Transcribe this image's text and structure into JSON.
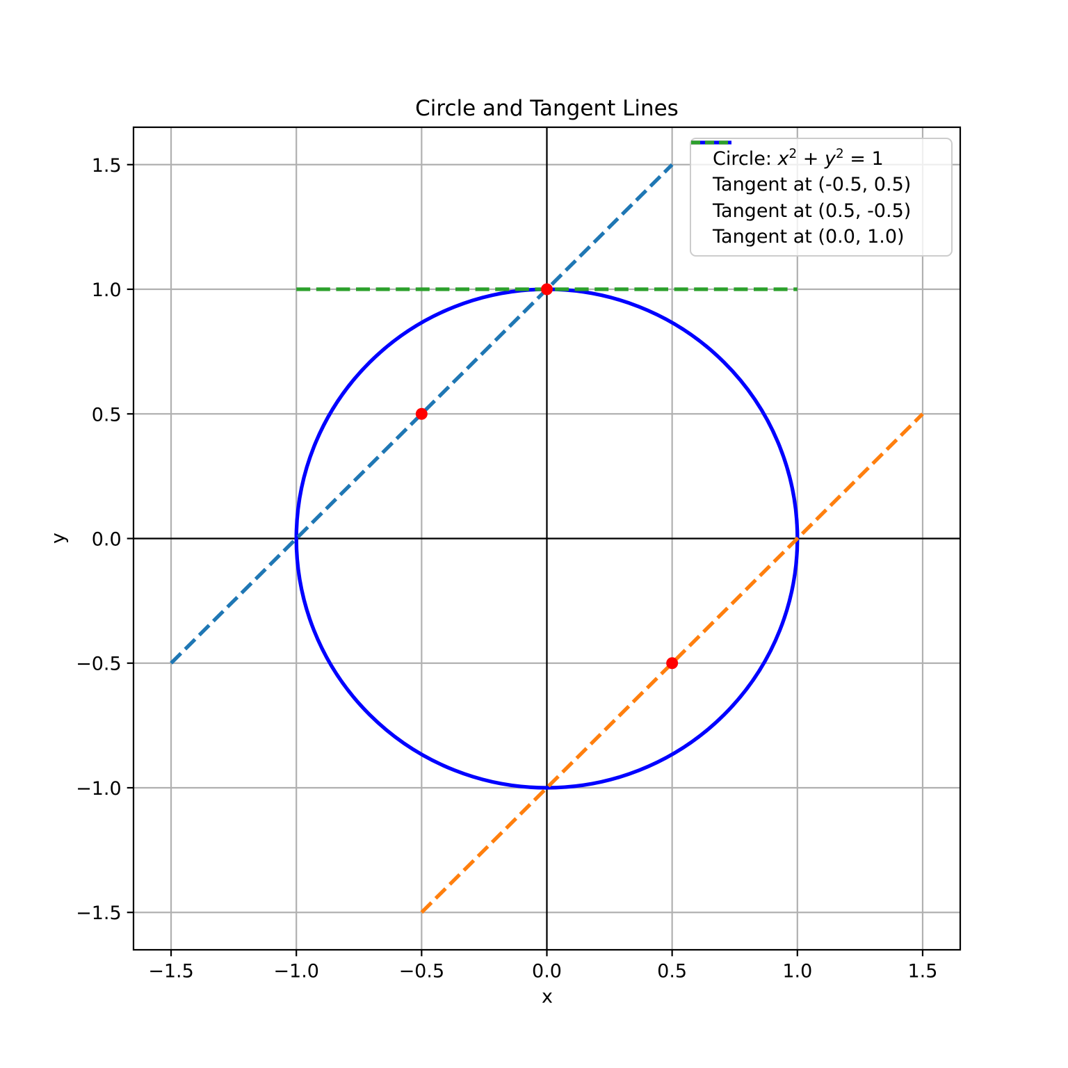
{
  "chart_data": {
    "type": "line",
    "title": "Circle and Tangent Lines",
    "xlabel": "x",
    "ylabel": "y",
    "xlim": [
      -1.65,
      1.65
    ],
    "ylim": [
      -1.65,
      1.65
    ],
    "xticks": [
      -1.5,
      -1.0,
      -0.5,
      0.0,
      0.5,
      1.0,
      1.5
    ],
    "yticks": [
      -1.5,
      -1.0,
      -0.5,
      0.0,
      0.5,
      1.0,
      1.5
    ],
    "xtick_labels": [
      "−1.5",
      "−1.0",
      "−0.5",
      "0.0",
      "0.5",
      "1.0",
      "1.5"
    ],
    "ytick_labels": [
      "−1.5",
      "−1.0",
      "−0.5",
      "0.0",
      "0.5",
      "1.0",
      "1.5"
    ],
    "grid": true,
    "grid_color": "#b0b0b0",
    "spine_color": "#000000",
    "zero_axis_lines": {
      "color": "#000000",
      "x": 0.0,
      "y": 0.0
    },
    "series": [
      {
        "name": "circle",
        "kind": "circle",
        "center": [
          0.0,
          0.0
        ],
        "radius": 1.0,
        "color": "#0000ff",
        "linestyle": "solid",
        "legend_text": "Circle: ",
        "legend_math": "x² + y² = 1"
      },
      {
        "name": "tangent-at-(-0.5,0.5)",
        "kind": "segment",
        "x": [
          -1.5,
          0.5
        ],
        "y": [
          -0.5,
          1.5
        ],
        "color": "#1f77b4",
        "linestyle": "dashed",
        "legend_text": "Tangent at (-0.5, 0.5)"
      },
      {
        "name": "tangent-at-(0.5,-0.5)",
        "kind": "segment",
        "x": [
          -0.5,
          1.5
        ],
        "y": [
          -1.5,
          0.5
        ],
        "color": "#ff7f0e",
        "linestyle": "dashed",
        "legend_text": "Tangent at (0.5, -0.5)"
      },
      {
        "name": "tangent-at-(0.0,1.0)",
        "kind": "segment",
        "x": [
          -1.0,
          1.0
        ],
        "y": [
          1.0,
          1.0
        ],
        "color": "#2ca02c",
        "linestyle": "dashed",
        "legend_text": "Tangent at (0.0, 1.0)"
      }
    ],
    "points": {
      "color": "#ff0000",
      "coords": [
        [
          -0.5,
          0.5
        ],
        [
          0.5,
          -0.5
        ],
        [
          0.0,
          1.0
        ]
      ]
    },
    "legend": {
      "position": "upper right"
    }
  }
}
